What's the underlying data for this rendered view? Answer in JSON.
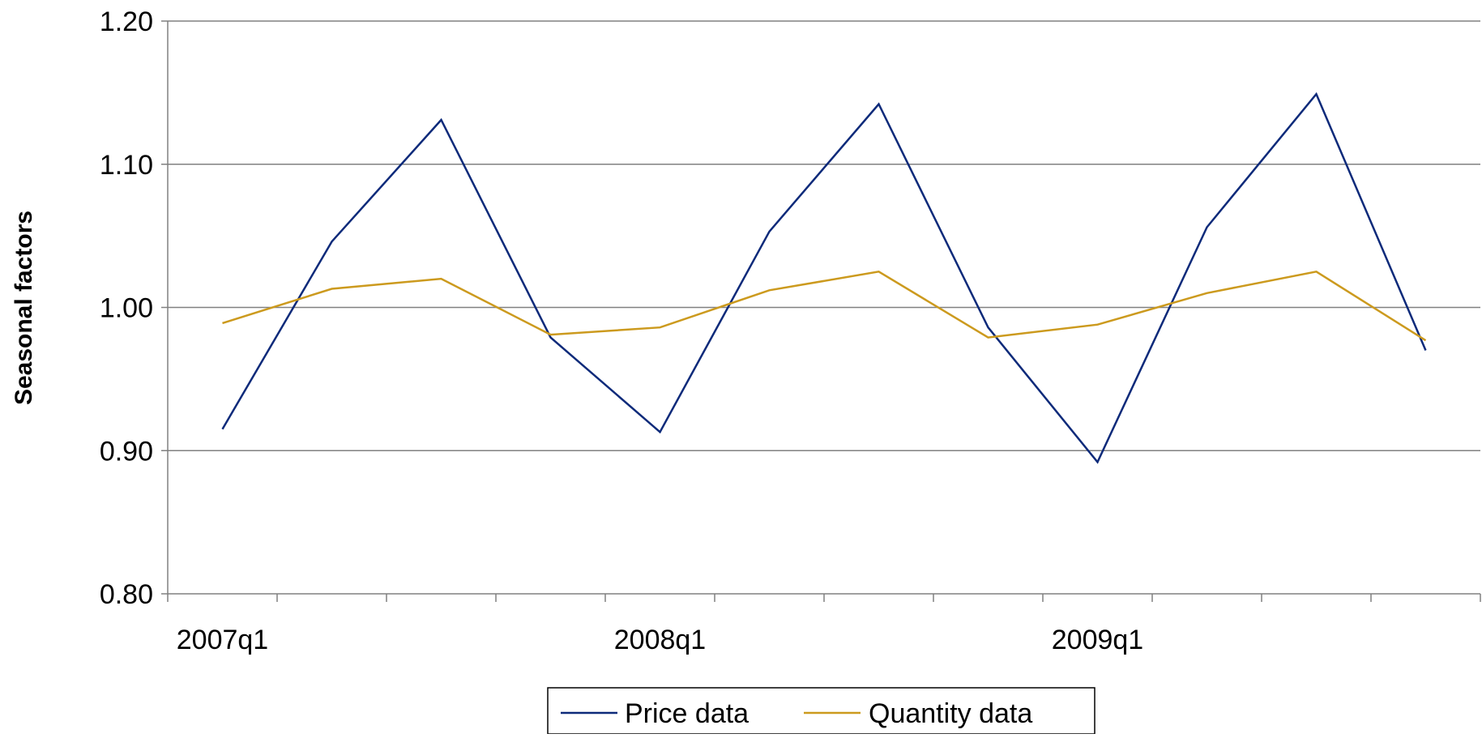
{
  "chart_data": {
    "type": "line",
    "title": "",
    "xlabel": "",
    "ylabel": "Seasonal factors",
    "ylim": [
      0.8,
      1.2
    ],
    "y_ticks": [
      "0.80",
      "0.90",
      "1.00",
      "1.10",
      "1.20"
    ],
    "categories": [
      "2007q1",
      "2007q2",
      "2007q3",
      "2007q4",
      "2008q1",
      "2008q2",
      "2008q3",
      "2008q4",
      "2009q1",
      "2009q2",
      "2009q3",
      "2009q4"
    ],
    "x_tick_labels": [
      "2007q1",
      "2008q1",
      "2009q1"
    ],
    "grid": true,
    "legend_position": "bottom",
    "series": [
      {
        "name": "Price data",
        "color": "#0d2a7a",
        "values": [
          0.915,
          1.046,
          1.131,
          0.979,
          0.913,
          1.053,
          1.142,
          0.986,
          0.892,
          1.056,
          1.149,
          0.97
        ]
      },
      {
        "name": "Quantity data",
        "color": "#cc9a1e",
        "values": [
          0.989,
          1.013,
          1.02,
          0.981,
          0.986,
          1.012,
          1.025,
          0.979,
          0.988,
          1.01,
          1.025,
          0.977
        ]
      }
    ]
  }
}
